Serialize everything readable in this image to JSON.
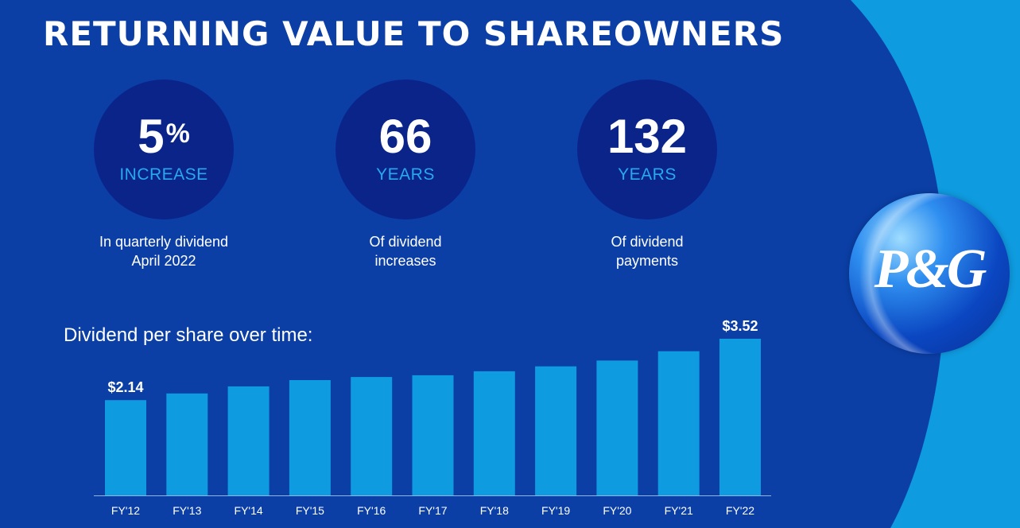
{
  "title": "RETURNING VALUE TO SHAREOWNERS",
  "stats": [
    {
      "value": "5",
      "sup": "%",
      "unit": "INCREASE",
      "caption_line1": "In quarterly dividend",
      "caption_line2": "April 2022"
    },
    {
      "value": "66",
      "sup": "",
      "unit": "YEARS",
      "caption_line1": "Of dividend",
      "caption_line2": "increases"
    },
    {
      "value": "132",
      "sup": "",
      "unit": "YEARS",
      "caption_line1": "Of dividend",
      "caption_line2": "payments"
    }
  ],
  "logo": {
    "text": "P&G"
  },
  "colors": {
    "panel": "#0b3fa6",
    "accent": "#0f9be0",
    "circle": "#0a248a",
    "bar": "#0f9be0",
    "text": "#ffffff"
  },
  "chart_data": {
    "type": "bar",
    "title": "Dividend per share over time:",
    "categories": [
      "FY'12",
      "FY'13",
      "FY'14",
      "FY'15",
      "FY'16",
      "FY'17",
      "FY'18",
      "FY'19",
      "FY'20",
      "FY'21",
      "FY'22"
    ],
    "values": [
      2.14,
      2.29,
      2.45,
      2.59,
      2.66,
      2.7,
      2.79,
      2.9,
      3.03,
      3.24,
      3.52
    ],
    "data_labels": {
      "0": "$2.14",
      "10": "$3.52"
    },
    "xlabel": "",
    "ylabel": "",
    "ylim": [
      0,
      3.52
    ],
    "grid": false
  }
}
